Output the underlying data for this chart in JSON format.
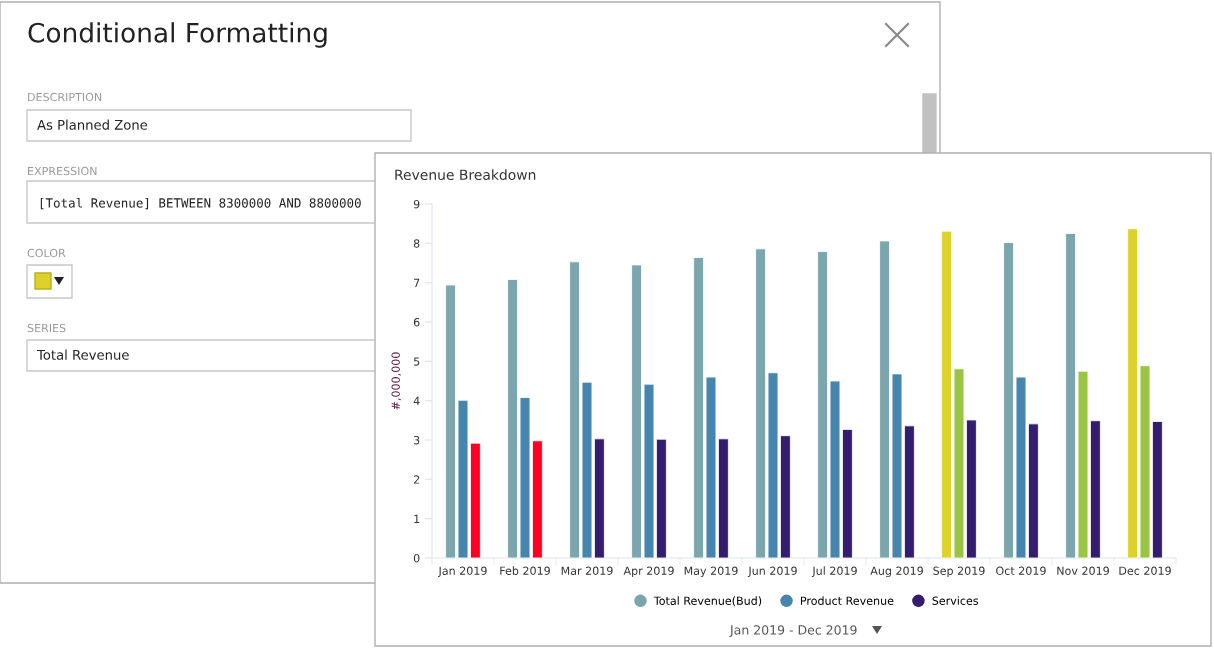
{
  "chart_data": {
    "type": "bar",
    "title": "Revenue Breakdown",
    "ylabel": "#,000,000",
    "categories": [
      "Jan 2019",
      "Feb 2019",
      "Mar 2019",
      "Apr 2019",
      "May 2019",
      "Jun 2019",
      "Jul 2019",
      "Aug 2019",
      "Sep 2019",
      "Oct 2019",
      "Nov 2019",
      "Dec 2019"
    ],
    "series": [
      {
        "name": "Total Revenue(Bud)",
        "color": "#7ba6ae",
        "colors": [
          "#7ba6ae",
          "#7ba6ae",
          "#7ba6ae",
          "#7ba6ae",
          "#7ba6ae",
          "#7ba6ae",
          "#7ba6ae",
          "#7ba6ae",
          "#ded22a",
          "#7ba6ae",
          "#7ba6ae",
          "#ded22a"
        ],
        "values": [
          6.94,
          7.08,
          7.53,
          7.45,
          7.64,
          7.86,
          7.79,
          8.06,
          8.31,
          8.02,
          8.25,
          8.37
        ]
      },
      {
        "name": "Product Revenue",
        "color": "#4686ae",
        "colors": [
          "#4686ae",
          "#4686ae",
          "#4686ae",
          "#4686ae",
          "#4686ae",
          "#4686ae",
          "#4686ae",
          "#4686ae",
          "#9ac543",
          "#4686ae",
          "#9ac543",
          "#9ac543"
        ],
        "values": [
          4.01,
          4.08,
          4.47,
          4.42,
          4.6,
          4.71,
          4.5,
          4.68,
          4.81,
          4.6,
          4.75,
          4.89
        ]
      },
      {
        "name": "Services",
        "color": "#341c6e",
        "colors": [
          "#ff0022",
          "#ff0022",
          "#341c6e",
          "#341c6e",
          "#341c6e",
          "#341c6e",
          "#341c6e",
          "#341c6e",
          "#341c6e",
          "#341c6e",
          "#341c6e",
          "#341c6e"
        ],
        "values": [
          2.92,
          2.98,
          3.03,
          3.02,
          3.03,
          3.11,
          3.27,
          3.36,
          3.51,
          3.41,
          3.49,
          3.47
        ]
      }
    ],
    "ylim": [
      0,
      9
    ],
    "yticks": [
      0,
      1,
      2,
      3,
      4,
      5,
      6,
      7,
      8,
      9
    ],
    "grid": false,
    "legend": "bottom",
    "annotations": [
      "Conditional Formatting",
      "DESCRIPTION",
      "As Planned Zone",
      "EXPRESSION",
      "[Total Revenue] BETWEEN 8300000 AND 8800000",
      "COLOR",
      "SERIES",
      "Total Revenue",
      "Jan 2019 - Dec 2019"
    ]
  }
}
